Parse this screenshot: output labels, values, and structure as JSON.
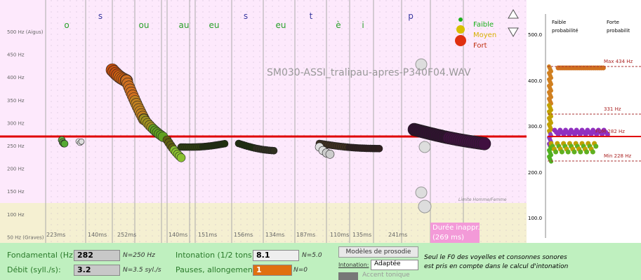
{
  "plot": {
    "hz_labels": [
      "500 Hz (Aigus)",
      "450 Hz",
      "400 Hz",
      "350 Hz",
      "300 Hz",
      "250 Hz",
      "200 Hz",
      "150 Hz",
      "100 Hz",
      "50 Hz (Graves)"
    ],
    "phonemes": [
      "o",
      "s",
      "ou",
      "au",
      "eu",
      "s",
      "eu",
      "t",
      "è",
      "i",
      "p"
    ],
    "durations": [
      "223ms",
      "140ms",
      "252ms",
      "140ms",
      "151ms",
      "156ms",
      "134ms",
      "187ms",
      "110ms",
      "135ms",
      "241ms"
    ],
    "warning": [
      "Durée inappr.",
      "(269 ms)"
    ],
    "filename": "SM030-ASSI_tralipau-apres-P340F04.WAV",
    "legend": [
      "Faible",
      "Moyen",
      "Fort"
    ],
    "limit_label": "Limite Homme/Femme"
  },
  "distribution": {
    "header_left": [
      "Faible",
      "probabilité"
    ],
    "header_right": [
      "Forte",
      "probabilit"
    ],
    "axis_labels": [
      "500.0",
      "400.0",
      "300.0",
      "200.0",
      "100.0"
    ],
    "lines": [
      "Max 434 Hz",
      "331 Hz",
      "FUM 282 Hz",
      "Min 228 Hz"
    ]
  },
  "controls": {
    "fundamental_label": "Fondamental (Hz):",
    "fundamental_value": "282",
    "fundamental_norm": "N=250 Hz",
    "rate_label": "Débit (syll./s):",
    "rate_value": "3.2",
    "rate_norm": "N=3.5 syl./s",
    "intonation_label": "Intonation (1/2 tons):",
    "intonation_value": "8.1",
    "intonation_norm": "N=5.0",
    "pauses_label": "Pauses, allongements:",
    "pauses_value": "1",
    "pauses_norm": "N=0",
    "models_button": "Modèles de prosodie",
    "intonation_select_label": "Intonation:",
    "intonation_select_value": "Adaptée",
    "accent_label": "Accent tonique",
    "note": [
      "Seul le F0 des voyelles et consonnes sonores",
      "est pris en compte dans le calcul d'intonation"
    ]
  }
}
